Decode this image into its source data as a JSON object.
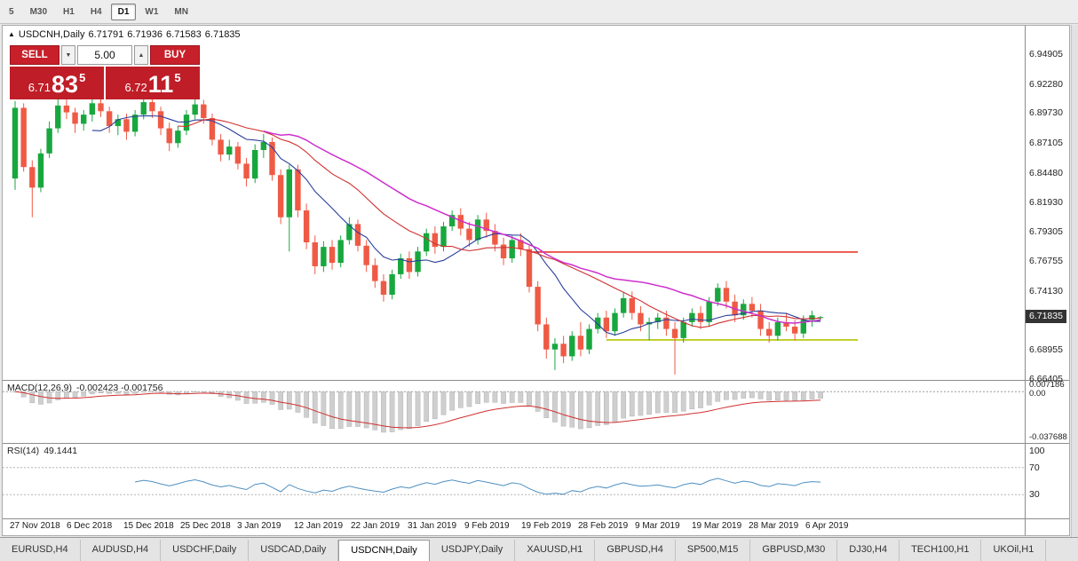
{
  "colors": {
    "bull": "#18a73e",
    "bear": "#ef5a45",
    "ma_fast": "#2b3e9b",
    "ma_mid": "#d03030",
    "ma_slow": "#cc2fcc",
    "hline_res": "#e8392b",
    "hline_sup": "#b4c400",
    "macd_hist": "#cfcfcf",
    "macd_hist_border": "#b3b3b3",
    "macd_signal": "#d03030",
    "rsi_line": "#4f8fc0",
    "panel_red": "#c8202a"
  },
  "toolbar": {
    "timeframes": [
      {
        "label": "5",
        "active": false
      },
      {
        "label": "M30",
        "active": false
      },
      {
        "label": "H1",
        "active": false
      },
      {
        "label": "H4",
        "active": false
      },
      {
        "label": "D1",
        "active": true
      },
      {
        "label": "W1",
        "active": false
      },
      {
        "label": "MN",
        "active": false
      }
    ]
  },
  "header": {
    "expand_icon": "▲",
    "symbol": "USDCNH,Daily",
    "open": "6.71791",
    "high": "6.71936",
    "low": "6.71583",
    "close": "6.71835"
  },
  "trade_panel": {
    "sell_label": "SELL",
    "buy_label": "BUY",
    "volume": "5.00",
    "vol_down_icon": "▼",
    "vol_up_icon": "▲",
    "bid": {
      "prefix": "6.71",
      "big": "83",
      "sup": "5"
    },
    "ask": {
      "prefix": "6.72",
      "big": "11",
      "sup": "5"
    }
  },
  "macd": {
    "name": "MACD(12,26,9)",
    "values": "-0.002423 -0.001756",
    "axis_top": "0.007186",
    "axis_zero": "0.00",
    "axis_bottom": "-0.037688"
  },
  "rsi": {
    "name": "RSI(14)",
    "value": "49.1441",
    "axis": [
      "100",
      "70",
      "30"
    ]
  },
  "tabs": [
    {
      "label": "EURUSD,H4",
      "active": false
    },
    {
      "label": "AUDUSD,H4",
      "active": false
    },
    {
      "label": "USDCHF,Daily",
      "active": false
    },
    {
      "label": "USDCAD,Daily",
      "active": false
    },
    {
      "label": "USDCNH,Daily",
      "active": true
    },
    {
      "label": "USDJPY,Daily",
      "active": false
    },
    {
      "label": "XAUUSD,H1",
      "active": false
    },
    {
      "label": "GBPUSD,H4",
      "active": false
    },
    {
      "label": "SP500,M15",
      "active": false
    },
    {
      "label": "GBPUSD,M30",
      "active": false
    },
    {
      "label": "DJ30,H4",
      "active": false
    },
    {
      "label": "TECH100,H1",
      "active": false
    },
    {
      "label": "UKOil,H1",
      "active": false
    }
  ],
  "chart_data": {
    "type": "candlestick",
    "title": "USDCNH,Daily",
    "symbol": "USDCNH",
    "timeframe": "Daily",
    "ylim": [
      6.6633,
      6.974
    ],
    "price_ticks": [
      "6.94905",
      "6.92280",
      "6.89730",
      "6.87105",
      "6.84480",
      "6.81930",
      "6.79305",
      "6.76755",
      "6.74130",
      "6.68955",
      "6.66405"
    ],
    "current_price": "6.71835",
    "date_ticks": [
      "27 Nov 2018",
      "6 Dec 2018",
      "15 Dec 2018",
      "25 Dec 2018",
      "3 Jan 2019",
      "12 Jan 2019",
      "22 Jan 2019",
      "31 Jan 2019",
      "9 Feb 2019",
      "19 Feb 2019",
      "28 Feb 2019",
      "9 Mar 2019",
      "19 Mar 2019",
      "28 Mar 2019",
      "6 Apr 2019"
    ],
    "candles": [
      [
        6.84,
        6.908,
        6.83,
        6.902
      ],
      [
        6.902,
        6.906,
        6.846,
        6.85
      ],
      [
        6.85,
        6.856,
        6.806,
        6.832
      ],
      [
        6.832,
        6.866,
        6.828,
        6.862
      ],
      [
        6.862,
        6.89,
        6.858,
        6.884
      ],
      [
        6.884,
        6.912,
        6.88,
        6.904
      ],
      [
        6.904,
        6.91,
        6.892,
        6.898
      ],
      [
        6.898,
        6.902,
        6.88,
        6.888
      ],
      [
        6.888,
        6.9,
        6.882,
        6.896
      ],
      [
        6.896,
        6.912,
        6.89,
        6.906
      ],
      [
        6.906,
        6.91,
        6.894,
        6.899
      ],
      [
        6.899,
        6.903,
        6.88,
        6.886
      ],
      [
        6.886,
        6.896,
        6.878,
        6.892
      ],
      [
        6.892,
        6.897,
        6.874,
        6.881
      ],
      [
        6.881,
        6.9,
        6.877,
        6.896
      ],
      [
        6.896,
        6.913,
        6.892,
        6.907
      ],
      [
        6.907,
        6.911,
        6.893,
        6.899
      ],
      [
        6.899,
        6.903,
        6.878,
        6.884
      ],
      [
        6.884,
        6.889,
        6.864,
        6.871
      ],
      [
        6.871,
        6.886,
        6.867,
        6.882
      ],
      [
        6.882,
        6.9,
        6.878,
        6.896
      ],
      [
        6.896,
        6.911,
        6.892,
        6.905
      ],
      [
        6.905,
        6.909,
        6.888,
        6.893
      ],
      [
        6.893,
        6.897,
        6.869,
        6.874
      ],
      [
        6.874,
        6.879,
        6.855,
        6.861
      ],
      [
        6.861,
        6.874,
        6.856,
        6.868
      ],
      [
        6.868,
        6.872,
        6.848,
        6.853
      ],
      [
        6.853,
        6.858,
        6.833,
        6.84
      ],
      [
        6.84,
        6.87,
        6.836,
        6.865
      ],
      [
        6.865,
        6.879,
        6.858,
        6.872
      ],
      [
        6.872,
        6.876,
        6.838,
        6.843
      ],
      [
        6.843,
        6.848,
        6.8,
        6.806
      ],
      [
        6.806,
        6.852,
        6.776,
        6.848
      ],
      [
        6.848,
        6.852,
        6.806,
        6.812
      ],
      [
        6.812,
        6.818,
        6.778,
        6.784
      ],
      [
        6.784,
        6.79,
        6.756,
        6.763
      ],
      [
        6.763,
        6.785,
        6.758,
        6.78
      ],
      [
        6.78,
        6.786,
        6.76,
        6.766
      ],
      [
        6.766,
        6.79,
        6.762,
        6.786
      ],
      [
        6.786,
        6.806,
        6.782,
        6.8
      ],
      [
        6.8,
        6.804,
        6.776,
        6.781
      ],
      [
        6.781,
        6.786,
        6.758,
        6.764
      ],
      [
        6.764,
        6.77,
        6.744,
        6.75
      ],
      [
        6.75,
        6.756,
        6.732,
        6.738
      ],
      [
        6.738,
        6.76,
        6.734,
        6.756
      ],
      [
        6.756,
        6.774,
        6.752,
        6.77
      ],
      [
        6.77,
        6.776,
        6.752,
        6.758
      ],
      [
        6.758,
        6.78,
        6.754,
        6.776
      ],
      [
        6.776,
        6.796,
        6.772,
        6.792
      ],
      [
        6.792,
        6.798,
        6.774,
        6.78
      ],
      [
        6.78,
        6.802,
        6.776,
        6.798
      ],
      [
        6.798,
        6.812,
        6.794,
        6.808
      ],
      [
        6.808,
        6.814,
        6.79,
        6.796
      ],
      [
        6.796,
        6.802,
        6.78,
        6.786
      ],
      [
        6.786,
        6.808,
        6.782,
        6.804
      ],
      [
        6.804,
        6.81,
        6.788,
        6.794
      ],
      [
        6.794,
        6.8,
        6.776,
        6.782
      ],
      [
        6.782,
        6.788,
        6.764,
        6.77
      ],
      [
        6.77,
        6.79,
        6.766,
        6.786
      ],
      [
        6.786,
        6.792,
        6.772,
        6.778
      ],
      [
        6.778,
        6.782,
        6.74,
        6.745
      ],
      [
        6.745,
        6.75,
        6.706,
        6.712
      ],
      [
        6.712,
        6.718,
        6.682,
        6.69
      ],
      [
        6.69,
        6.7,
        6.672,
        6.695
      ],
      [
        6.695,
        6.702,
        6.678,
        6.684
      ],
      [
        6.684,
        6.706,
        6.68,
        6.702
      ],
      [
        6.702,
        6.714,
        6.684,
        6.69
      ],
      [
        6.69,
        6.712,
        6.686,
        6.708
      ],
      [
        6.708,
        6.722,
        6.704,
        6.718
      ],
      [
        6.718,
        6.724,
        6.7,
        6.706
      ],
      [
        6.706,
        6.726,
        6.702,
        6.722
      ],
      [
        6.722,
        6.74,
        6.718,
        6.735
      ],
      [
        6.735,
        6.741,
        6.716,
        6.722
      ],
      [
        6.722,
        6.728,
        6.706,
        6.712
      ],
      [
        6.712,
        6.718,
        6.698,
        6.714
      ],
      [
        6.714,
        6.722,
        6.708,
        6.718
      ],
      [
        6.718,
        6.724,
        6.702,
        6.708
      ],
      [
        6.708,
        6.714,
        6.668,
        6.7
      ],
      [
        6.7,
        6.718,
        6.696,
        6.714
      ],
      [
        6.714,
        6.726,
        6.71,
        6.722
      ],
      [
        6.722,
        6.728,
        6.708,
        6.714
      ],
      [
        6.714,
        6.736,
        6.71,
        6.732
      ],
      [
        6.732,
        6.748,
        6.728,
        6.744
      ],
      [
        6.744,
        6.75,
        6.726,
        6.732
      ],
      [
        6.732,
        6.738,
        6.714,
        6.72
      ],
      [
        6.72,
        6.734,
        6.716,
        6.73
      ],
      [
        6.73,
        6.736,
        6.718,
        6.724
      ],
      [
        6.724,
        6.73,
        6.702,
        6.708
      ],
      [
        6.708,
        6.714,
        6.696,
        6.702
      ],
      [
        6.702,
        6.718,
        6.698,
        6.714
      ],
      [
        6.714,
        6.722,
        6.706,
        6.71
      ],
      [
        6.71,
        6.716,
        6.698,
        6.704
      ],
      [
        6.704,
        6.72,
        6.7,
        6.716
      ],
      [
        6.716,
        6.724,
        6.71,
        6.72
      ],
      [
        6.71791,
        6.71936,
        6.71583,
        6.71835
      ]
    ],
    "overlays": [
      {
        "type": "sma",
        "period": 10,
        "color_key": "ma_fast",
        "width": 1.1
      },
      {
        "type": "sma",
        "period": 20,
        "color_key": "ma_mid",
        "width": 1.1
      },
      {
        "type": "sma",
        "period": 30,
        "color_key": "ma_slow",
        "width": 1.5
      }
    ],
    "hlines": [
      {
        "price": 6.7755,
        "start_index": 60,
        "color_key": "hline_res"
      },
      {
        "price": 6.6984,
        "start_index": 69,
        "color_key": "hline_sup"
      }
    ],
    "hline_right_x": 963,
    "macd_params": {
      "fast": 12,
      "slow": 26,
      "signal": 9,
      "axis_max": 0.007186,
      "axis_min": -0.037688
    },
    "rsi_params": {
      "period": 14,
      "levels": [
        70,
        30
      ],
      "range": [
        0,
        100
      ]
    }
  }
}
